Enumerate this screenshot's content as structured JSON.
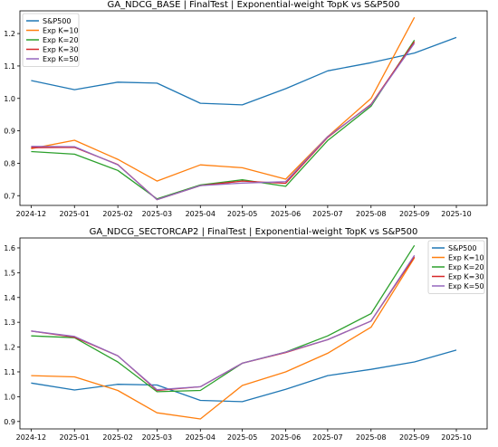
{
  "chart_data": [
    {
      "type": "line",
      "title": "GA_NDCG_BASE | FinalTest | Exponential-weight TopK vs S&P500",
      "xlabel": "",
      "ylabel": "",
      "x_ticks": [
        "2024-12",
        "2025-01",
        "2025-02",
        "2025-03",
        "2025-04",
        "2025-05",
        "2025-06",
        "2025-07",
        "2025-08",
        "2025-09",
        "2025-10"
      ],
      "ylim": [
        0.67,
        1.27
      ],
      "y_ticks": [
        "0.7",
        "0.8",
        "0.9",
        "1.0",
        "1.1",
        "1.2"
      ],
      "legend_position": "top-left",
      "series": [
        {
          "name": "S&P500",
          "color": "#1f77b4",
          "x": [
            "2024-12-01",
            "2025-01-01",
            "2025-02-01",
            "2025-03-01",
            "2025-04-01",
            "2025-05-01",
            "2025-06-01",
            "2025-07-01",
            "2025-08-01",
            "2025-09-01",
            "2025-10-01"
          ],
          "values": [
            1.055,
            1.027,
            1.05,
            1.047,
            0.985,
            0.98,
            1.03,
            1.085,
            1.11,
            1.14,
            1.188
          ]
        },
        {
          "name": "Exp K=10",
          "color": "#ff7f0e",
          "x": [
            "2024-12-01",
            "2025-01-01",
            "2025-02-01",
            "2025-03-01",
            "2025-04-01",
            "2025-05-01",
            "2025-06-01",
            "2025-07-01",
            "2025-08-01",
            "2025-09-01"
          ],
          "values": [
            0.845,
            0.871,
            0.812,
            0.745,
            0.795,
            0.786,
            0.751,
            0.882,
            1.0,
            1.25
          ]
        },
        {
          "name": "Exp K=20",
          "color": "#2ca02c",
          "x": [
            "2024-12-01",
            "2025-01-01",
            "2025-02-01",
            "2025-03-01",
            "2025-04-01",
            "2025-05-01",
            "2025-06-01",
            "2025-07-01",
            "2025-08-01",
            "2025-09-01"
          ],
          "values": [
            0.836,
            0.828,
            0.778,
            0.69,
            0.733,
            0.749,
            0.729,
            0.87,
            0.976,
            1.18
          ]
        },
        {
          "name": "Exp K=30",
          "color": "#d62728",
          "x": [
            "2024-12-01",
            "2025-01-01",
            "2025-02-01",
            "2025-03-01",
            "2025-04-01",
            "2025-05-01",
            "2025-06-01",
            "2025-07-01",
            "2025-08-01",
            "2025-09-01"
          ],
          "values": [
            0.848,
            0.849,
            0.796,
            0.688,
            0.731,
            0.745,
            0.738,
            0.88,
            0.982,
            1.175
          ]
        },
        {
          "name": "Exp K=50",
          "color": "#9467bd",
          "x": [
            "2024-12-01",
            "2025-01-01",
            "2025-02-01",
            "2025-03-01",
            "2025-04-01",
            "2025-05-01",
            "2025-06-01",
            "2025-07-01",
            "2025-08-01",
            "2025-09-01"
          ],
          "values": [
            0.852,
            0.851,
            0.795,
            0.688,
            0.731,
            0.739,
            0.743,
            0.882,
            0.98,
            1.17
          ]
        }
      ]
    },
    {
      "type": "line",
      "title": "GA_NDCG_SECTORCAP2 | FinalTest | Exponential-weight TopK vs S&P500",
      "xlabel": "",
      "ylabel": "",
      "x_ticks": [
        "2024-12",
        "2025-01",
        "2025-02",
        "2025-03",
        "2025-04",
        "2025-05",
        "2025-06",
        "2025-07",
        "2025-08",
        "2025-09",
        "2025-10"
      ],
      "ylim": [
        0.87,
        1.64
      ],
      "y_ticks": [
        "0.9",
        "1.0",
        "1.1",
        "1.2",
        "1.3",
        "1.4",
        "1.5",
        "1.6"
      ],
      "legend_position": "top-right",
      "series": [
        {
          "name": "S&P500",
          "color": "#1f77b4",
          "x": [
            "2024-12-01",
            "2025-01-01",
            "2025-02-01",
            "2025-03-01",
            "2025-04-01",
            "2025-05-01",
            "2025-06-01",
            "2025-07-01",
            "2025-08-01",
            "2025-09-01",
            "2025-10-01"
          ],
          "values": [
            1.055,
            1.027,
            1.05,
            1.047,
            0.985,
            0.98,
            1.03,
            1.085,
            1.11,
            1.14,
            1.188
          ]
        },
        {
          "name": "Exp K=10",
          "color": "#ff7f0e",
          "x": [
            "2024-12-01",
            "2025-01-01",
            "2025-02-01",
            "2025-03-01",
            "2025-04-01",
            "2025-05-01",
            "2025-06-01",
            "2025-07-01",
            "2025-08-01",
            "2025-09-01"
          ],
          "values": [
            1.085,
            1.08,
            1.025,
            0.935,
            0.91,
            1.045,
            1.1,
            1.175,
            1.28,
            1.56
          ]
        },
        {
          "name": "Exp K=20",
          "color": "#2ca02c",
          "x": [
            "2024-12-01",
            "2025-01-01",
            "2025-02-01",
            "2025-03-01",
            "2025-04-01",
            "2025-05-01",
            "2025-06-01",
            "2025-07-01",
            "2025-08-01",
            "2025-09-01"
          ],
          "values": [
            1.245,
            1.238,
            1.14,
            1.02,
            1.025,
            1.135,
            1.18,
            1.245,
            1.335,
            1.61
          ]
        },
        {
          "name": "Exp K=30",
          "color": "#d62728",
          "x": [
            "2024-12-01",
            "2025-01-01",
            "2025-02-01",
            "2025-03-01",
            "2025-04-01",
            "2025-05-01",
            "2025-06-01",
            "2025-07-01",
            "2025-08-01",
            "2025-09-01"
          ],
          "values": [
            1.265,
            1.24,
            1.165,
            1.025,
            1.04,
            1.135,
            1.178,
            1.23,
            1.305,
            1.565
          ]
        },
        {
          "name": "Exp K=50",
          "color": "#9467bd",
          "x": [
            "2024-12-01",
            "2025-01-01",
            "2025-02-01",
            "2025-03-01",
            "2025-04-01",
            "2025-05-01",
            "2025-06-01",
            "2025-07-01",
            "2025-08-01",
            "2025-09-01"
          ],
          "values": [
            1.265,
            1.243,
            1.165,
            1.028,
            1.04,
            1.135,
            1.18,
            1.23,
            1.305,
            1.57
          ]
        }
      ]
    }
  ]
}
